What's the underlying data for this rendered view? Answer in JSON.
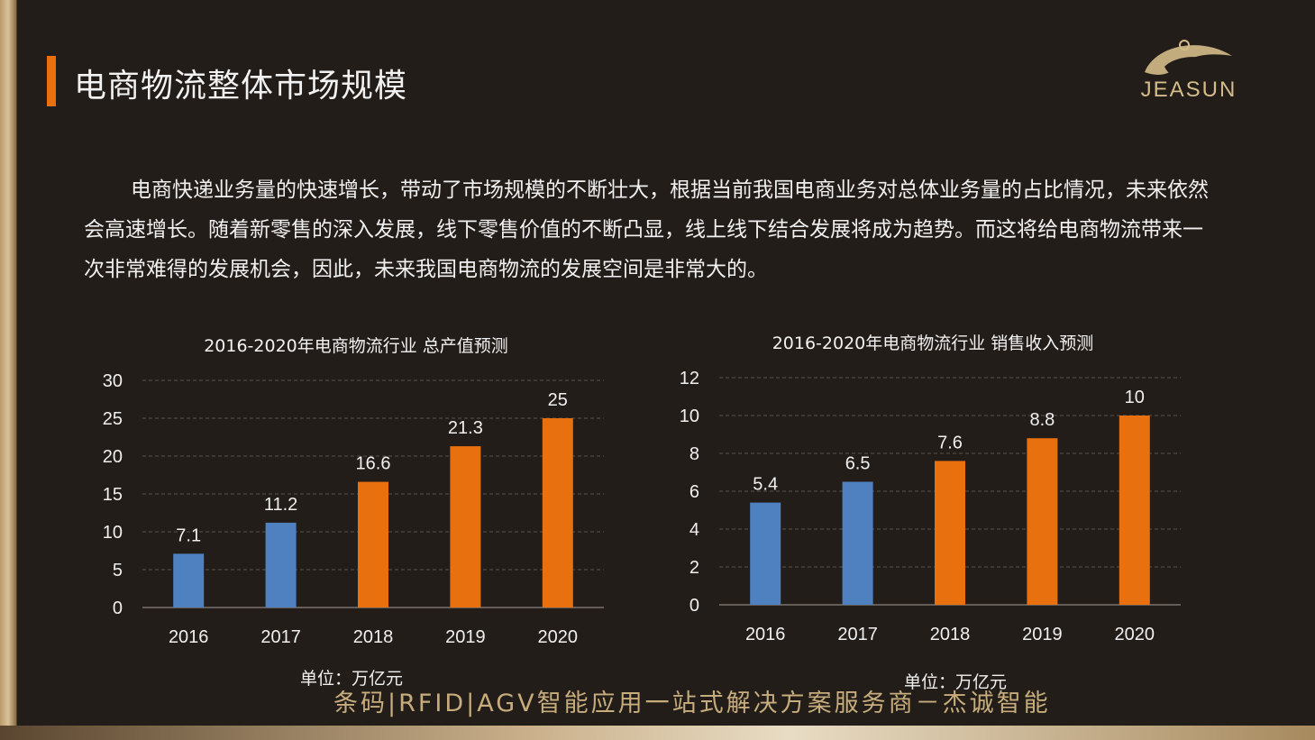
{
  "header": {
    "title": "电商物流整体市场规模",
    "logo_text": "JEASUN"
  },
  "intro_text": "电商快递业务量的快速增长，带动了市场规模的不断壮大，根据当前我国电商业务对总体业务量的占比情况，未来依然会高速增长。随着新零售的深入发展，线下零售价值的不断凸显，线上线下结合发展将成为趋势。而这将给电商物流带来一次非常难得的发展机会，因此，未来我国电商物流的发展空间是非常大的。",
  "footer": {
    "slogan": "条码|RFID|AGV智能应用一站式解决方案服务商－杰诚智能"
  },
  "colors": {
    "actual": "#4f81c0",
    "forecast": "#e8700f",
    "accent": "#e8700f",
    "text": "#f0f0f0",
    "grid": "#5a524c"
  },
  "chart_data": [
    {
      "type": "bar",
      "title": "2016-2020年电商物流行业 总产值预测",
      "categories": [
        "2016",
        "2017",
        "2018",
        "2019",
        "2020"
      ],
      "values": [
        7.1,
        11.2,
        16.6,
        21.3,
        25
      ],
      "value_labels": [
        "7.1",
        "11.2",
        "16.6",
        "21.3",
        "25"
      ],
      "bar_colors": [
        "#4f81c0",
        "#4f81c0",
        "#e8700f",
        "#e8700f",
        "#e8700f"
      ],
      "ylim": [
        0,
        30
      ],
      "yticks": [
        0,
        5,
        10,
        15,
        20,
        25,
        30
      ],
      "grid": true,
      "unit": "单位：万亿元"
    },
    {
      "type": "bar",
      "title": "2016-2020年电商物流行业 销售收入预测",
      "categories": [
        "2016",
        "2017",
        "2018",
        "2019",
        "2020"
      ],
      "values": [
        5.4,
        6.5,
        7.6,
        8.8,
        10
      ],
      "value_labels": [
        "5.4",
        "6.5",
        "7.6",
        "8.8",
        "10"
      ],
      "bar_colors": [
        "#4f81c0",
        "#4f81c0",
        "#e8700f",
        "#e8700f",
        "#e8700f"
      ],
      "ylim": [
        0,
        12
      ],
      "yticks": [
        0,
        2,
        4,
        6,
        8,
        10,
        12
      ],
      "grid": true,
      "unit": "单位：万亿元"
    }
  ]
}
